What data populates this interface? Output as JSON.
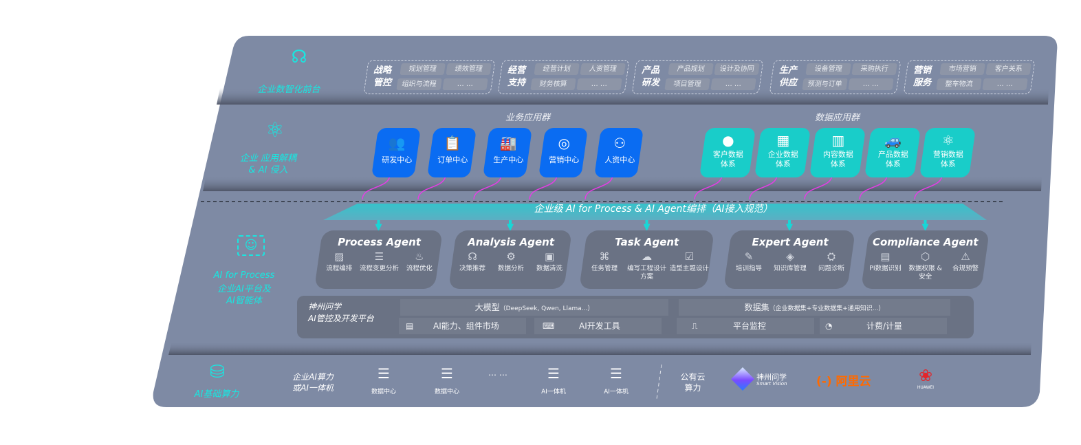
{
  "layers": {
    "frontend": {
      "label": "企业数智化前台",
      "icon": "brain-icon"
    },
    "apps": {
      "label": "企业 应用解耦\n& AI 侵入",
      "icon": "molecule-icon"
    },
    "ai": {
      "label_en": "AI for Process",
      "label_cn": "企业AI平台及\nAI智能体",
      "icon": "face-scan-icon"
    },
    "infra": {
      "label": "AI基础算力",
      "icon": "database-icon"
    }
  },
  "categories": [
    {
      "name": "战略\n管控",
      "items": [
        "规划管理",
        "绩效管理",
        "组织与流程",
        "… …"
      ]
    },
    {
      "name": "经营\n支持",
      "items": [
        "经营计划",
        "人资管理",
        "财务核算",
        "… …"
      ]
    },
    {
      "name": "产品\n研发",
      "items": [
        "产品规划",
        "设计及协同",
        "项目管理",
        "… …"
      ]
    },
    {
      "name": "生产\n供应",
      "items": [
        "设备管理",
        "采购执行",
        "预测与订单",
        "… …"
      ]
    },
    {
      "name": "营销\n服务",
      "items": [
        "市场营销",
        "客户关系",
        "整车物流",
        "… …"
      ]
    }
  ],
  "business_group": {
    "title": "业务应用群",
    "tiles": [
      {
        "label": "研发中心",
        "icon": "team-icon"
      },
      {
        "label": "订单中心",
        "icon": "clipboard-icon"
      },
      {
        "label": "生产中心",
        "icon": "factory-icon"
      },
      {
        "label": "营销中心",
        "icon": "target-icon"
      },
      {
        "label": "人资中心",
        "icon": "people-icon"
      }
    ]
  },
  "data_group": {
    "title": "数据应用群",
    "tiles": [
      {
        "label": "客户数据\n体系",
        "icon": "user-icon"
      },
      {
        "label": "企业数据\n体系",
        "icon": "building-icon"
      },
      {
        "label": "内容数据\n体系",
        "icon": "books-icon"
      },
      {
        "label": "产品数据\n体系",
        "icon": "car-icon"
      },
      {
        "label": "营销数据\n体系",
        "icon": "atom-icon"
      }
    ]
  },
  "orchestration": {
    "title": "企业级 AI for Process & AI Agent编排（AI接入规范）"
  },
  "agents": [
    {
      "title": "Process Agent",
      "items": [
        "流程编排",
        "流程变更分析",
        "流程优化"
      ]
    },
    {
      "title": "Analysis Agent",
      "items": [
        "决策推荐",
        "数据分析",
        "数据清洗"
      ]
    },
    {
      "title": "Task Agent",
      "items": [
        "任务管理",
        "编写工程设计方案",
        "造型主题设计"
      ]
    },
    {
      "title": "Expert Agent",
      "items": [
        "培训指导",
        "知识库管理",
        "问题诊断"
      ]
    },
    {
      "title": "Compliance Agent",
      "items": [
        "PI数据识别",
        "数据权限 &\n安全",
        "合规预警"
      ]
    }
  ],
  "platform": {
    "name": "神州问学\nAI管控及开发平台",
    "model": "大模型",
    "model_note": "（DeepSeek, Qwen, Llama...）",
    "dataset": "数据集",
    "dataset_note": "（企业数据集+专业数据集+通用知识...）",
    "tools": [
      "AI能力、组件市场",
      "AI开发工具",
      "平台监控",
      "计费/计量"
    ]
  },
  "infra": {
    "private_label": "企业AI算力\n或AI一体机",
    "servers": [
      "数据中心",
      "数据中心",
      "AI一体机",
      "AI一体机"
    ],
    "ellipsis": "… …",
    "public_label": "公有云\n算力",
    "vendors": {
      "smartvision_cn": "神州问学",
      "smartvision_en": "Smart Vision",
      "aliyun": "阿里云",
      "aliyun_mark": "(-)",
      "huawei": "HUAWEI"
    }
  },
  "colors": {
    "panel": "#7e8aa4",
    "accent": "#19e6e0",
    "blue_tile": "#0a6cf2",
    "teal_tile": "#19cdc9",
    "connector": "#e63de6",
    "aliyun": "#ff6a00",
    "huawei": "#e3262b"
  }
}
